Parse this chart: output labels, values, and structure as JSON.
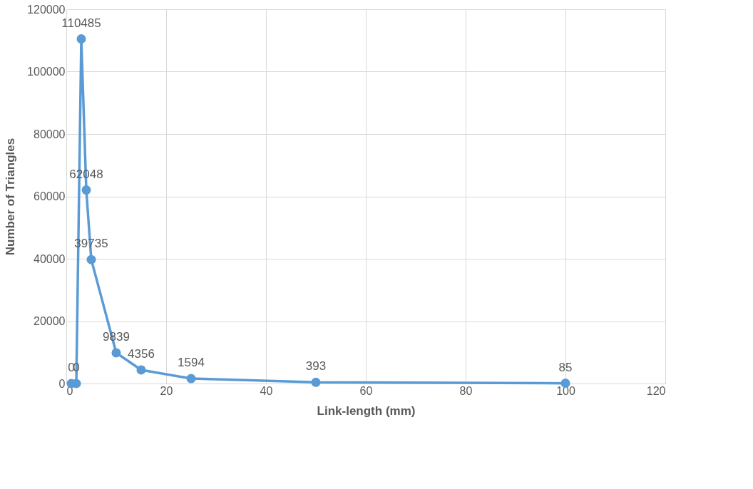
{
  "chart_data": {
    "type": "line",
    "xlabel": "Link-length (mm)",
    "ylabel": "Number of Triangles",
    "x": [
      1,
      2,
      3,
      4,
      5,
      10,
      15,
      25,
      50,
      100
    ],
    "series": [
      {
        "color": "#5b9bd5",
        "values": [
          0,
          0,
          110485,
          62048,
          39735,
          9839,
          4356,
          1594,
          393,
          85
        ]
      }
    ],
    "xlim": [
      0,
      120
    ],
    "xticks": [
      0,
      20,
      40,
      60,
      80,
      100,
      120
    ],
    "ylim": [
      0,
      120000
    ],
    "yticks": [
      0,
      20000,
      40000,
      60000,
      80000,
      100000,
      120000
    ],
    "grid": true,
    "marker": "circle",
    "line_style": "solid",
    "data_labels": true
  }
}
